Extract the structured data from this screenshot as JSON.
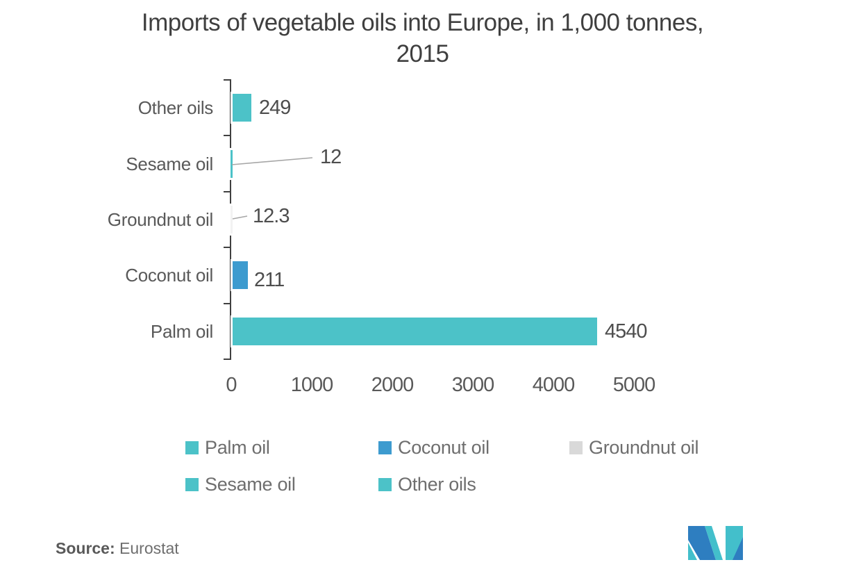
{
  "title": {
    "line1": "Imports of vegetable oils into Europe, in 1,000 tonnes,",
    "line2": "2015"
  },
  "chart_data": {
    "type": "bar",
    "orientation": "horizontal",
    "title": "Imports of vegetable oils into Europe, in 1,000 tonnes, 2015",
    "categories": [
      "Other oils",
      "Sesame oil",
      "Groundnut oil",
      "Coconut oil",
      "Palm oil"
    ],
    "values": [
      249,
      12,
      12.3,
      211,
      4540
    ],
    "value_labels": [
      "249",
      "12",
      "12.3",
      "211",
      "4540"
    ],
    "bar_colors": [
      "#4CC2C8",
      "#4CC2C8",
      "#F2F2F2",
      "#3D9BCF",
      "#4CC2C8"
    ],
    "xlabel": "",
    "ylabel": "",
    "xlim": [
      0,
      5000
    ],
    "x_ticks": [
      "0",
      "1000",
      "2000",
      "3000",
      "4000",
      "5000"
    ],
    "grid": false,
    "legend_position": "bottom",
    "legend": [
      {
        "label": "Palm oil",
        "color": "#4CC2C8"
      },
      {
        "label": "Coconut oil",
        "color": "#3D9BCF"
      },
      {
        "label": "Groundnut oil",
        "color": "#D9D9D9"
      },
      {
        "label": "Sesame oil",
        "color": "#4CC2C8"
      },
      {
        "label": "Other oils",
        "color": "#4CC2C8"
      }
    ]
  },
  "source": {
    "label": "Source:",
    "value": "Eurostat"
  },
  "logo": {
    "name": "mordor-intelligence-logo"
  },
  "colors": {
    "teal": "#4CC2C8",
    "blue": "#3D9BCF",
    "legend_gray": "#D9D9D9",
    "title_text": "#3F3F3F",
    "label_text": "#595959",
    "legend_text": "#6E6E6E",
    "axis_line": "#404040",
    "leader_line": "#A6A6A6",
    "logo_blue": "#2E7EC0",
    "logo_teal": "#43BFCB",
    "background": "#FFFFFF"
  }
}
